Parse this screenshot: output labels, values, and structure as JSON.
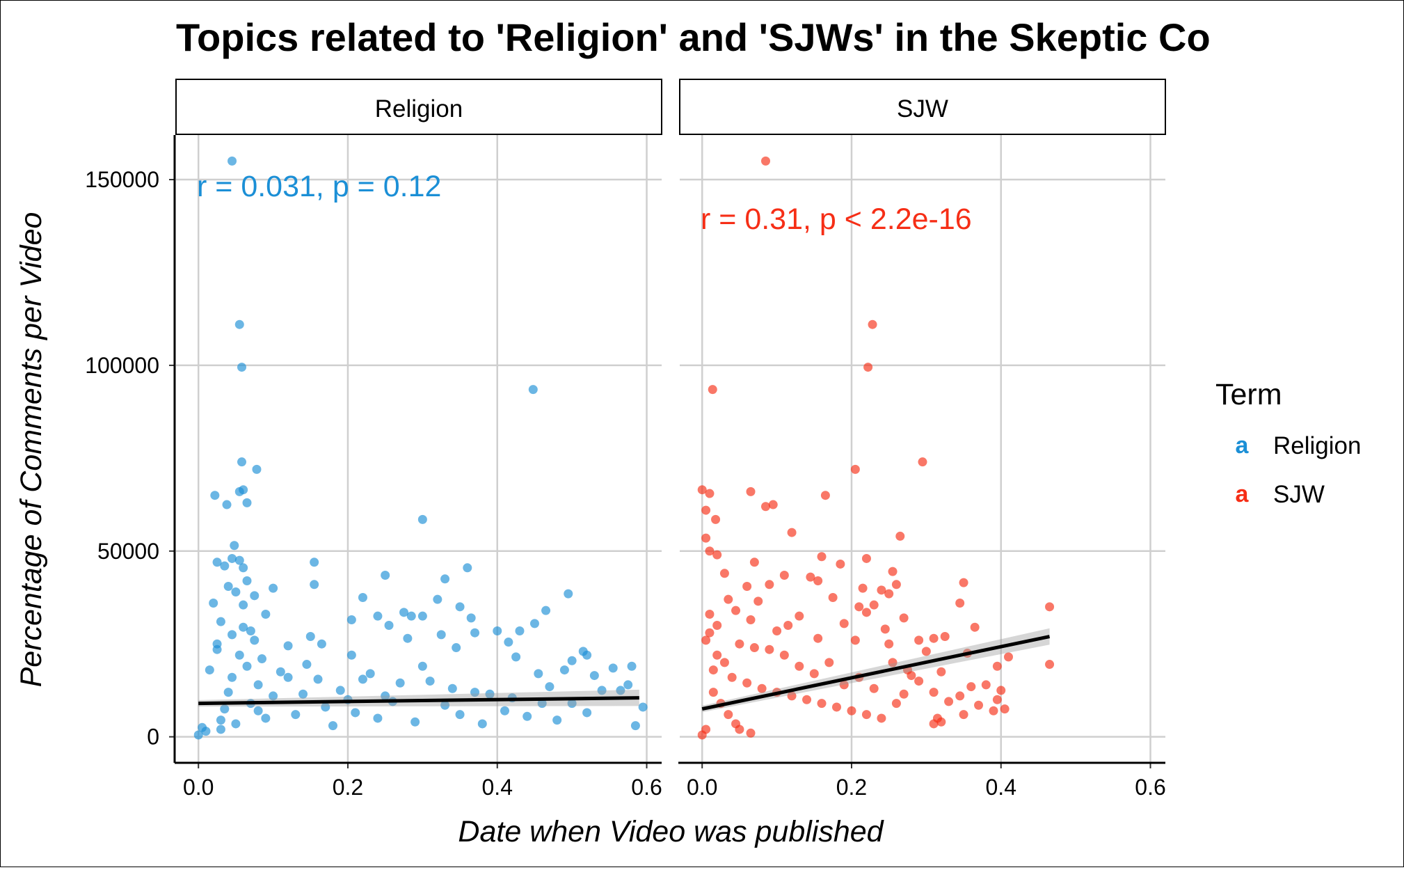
{
  "title": "Topics related to 'Religion' and 'SJWs' in the Skeptic Co",
  "chart_data": {
    "type": "scatter",
    "xlabel": "Date when Video was published",
    "ylabel": "Percentage of Comments per Video",
    "xlim": [
      -0.03,
      0.62
    ],
    "ylim": [
      -7000,
      162000
    ],
    "x_ticks": [
      0.0,
      0.2,
      0.4,
      0.6
    ],
    "x_tick_labels": [
      "0.0",
      "0.2",
      "0.4",
      "0.6"
    ],
    "y_ticks": [
      0,
      50000,
      100000,
      150000
    ],
    "y_tick_labels": [
      "0",
      "50000",
      "100000",
      "150000"
    ],
    "grid": true,
    "legend": {
      "title": "Term",
      "position": "right",
      "entries": [
        {
          "label": "Religion",
          "color": "#1b8fd6"
        },
        {
          "label": "SJW",
          "color": "#f62e16"
        }
      ],
      "key_glyph": "a"
    },
    "facets": [
      {
        "label": "Religion",
        "color": "#1b8fd6",
        "annotation": "r = 0.031, p = 0.12",
        "trend": {
          "x": [
            0.0,
            0.59
          ],
          "y": [
            9000,
            10500
          ]
        },
        "points": [
          [
            0.045,
            155000
          ],
          [
            0.055,
            111000
          ],
          [
            0.058,
            99500
          ],
          [
            0.448,
            93500
          ],
          [
            0.058,
            74000
          ],
          [
            0.078,
            72000
          ],
          [
            0.06,
            66500
          ],
          [
            0.022,
            65000
          ],
          [
            0.055,
            66000
          ],
          [
            0.065,
            63000
          ],
          [
            0.038,
            62500
          ],
          [
            0.3,
            58500
          ],
          [
            0.048,
            51500
          ],
          [
            0.045,
            48000
          ],
          [
            0.055,
            47500
          ],
          [
            0.025,
            47000
          ],
          [
            0.155,
            47000
          ],
          [
            0.035,
            46000
          ],
          [
            0.06,
            45500
          ],
          [
            0.36,
            45500
          ],
          [
            0.25,
            43500
          ],
          [
            0.33,
            42500
          ],
          [
            0.065,
            42000
          ],
          [
            0.155,
            41000
          ],
          [
            0.1,
            40000
          ],
          [
            0.04,
            40500
          ],
          [
            0.05,
            39000
          ],
          [
            0.495,
            38500
          ],
          [
            0.075,
            38000
          ],
          [
            0.22,
            37500
          ],
          [
            0.32,
            37000
          ],
          [
            0.02,
            36000
          ],
          [
            0.06,
            35500
          ],
          [
            0.35,
            35000
          ],
          [
            0.465,
            34000
          ],
          [
            0.275,
            33500
          ],
          [
            0.09,
            33000
          ],
          [
            0.24,
            32500
          ],
          [
            0.285,
            32500
          ],
          [
            0.3,
            32500
          ],
          [
            0.205,
            31500
          ],
          [
            0.365,
            32000
          ],
          [
            0.03,
            31000
          ],
          [
            0.45,
            30500
          ],
          [
            0.255,
            30000
          ],
          [
            0.4,
            28500
          ],
          [
            0.43,
            28500
          ],
          [
            0.15,
            27000
          ],
          [
            0.045,
            27500
          ],
          [
            0.28,
            26500
          ],
          [
            0.37,
            28000
          ],
          [
            0.07,
            28500
          ],
          [
            0.325,
            27500
          ],
          [
            0.415,
            25500
          ],
          [
            0.165,
            25000
          ],
          [
            0.12,
            24500
          ],
          [
            0.345,
            24000
          ],
          [
            0.515,
            23000
          ],
          [
            0.025,
            23500
          ],
          [
            0.205,
            22000
          ],
          [
            0.425,
            21500
          ],
          [
            0.52,
            22000
          ],
          [
            0.5,
            20500
          ],
          [
            0.145,
            19500
          ],
          [
            0.3,
            19000
          ],
          [
            0.455,
            17000
          ],
          [
            0.49,
            18000
          ],
          [
            0.555,
            18500
          ],
          [
            0.58,
            19000
          ],
          [
            0.53,
            16500
          ],
          [
            0.575,
            14000
          ],
          [
            0.12,
            16000
          ],
          [
            0.22,
            15500
          ],
          [
            0.54,
            12500
          ],
          [
            0.47,
            13500
          ],
          [
            0.39,
            11500
          ],
          [
            0.565,
            12500
          ],
          [
            0.595,
            8000
          ],
          [
            0.585,
            3000
          ],
          [
            0.01,
            1500
          ],
          [
            0.055,
            22000
          ],
          [
            0.065,
            19000
          ],
          [
            0.045,
            16000
          ],
          [
            0.08,
            14000
          ],
          [
            0.04,
            12000
          ],
          [
            0.1,
            11000
          ],
          [
            0.07,
            9000
          ],
          [
            0.035,
            7500
          ],
          [
            0.13,
            6000
          ],
          [
            0.09,
            5000
          ],
          [
            0.05,
            3500
          ],
          [
            0.03,
            2000
          ],
          [
            0.17,
            8000
          ],
          [
            0.21,
            6500
          ],
          [
            0.18,
            3000
          ],
          [
            0.26,
            9500
          ],
          [
            0.24,
            5000
          ],
          [
            0.29,
            4000
          ],
          [
            0.33,
            8500
          ],
          [
            0.35,
            6000
          ],
          [
            0.38,
            3500
          ],
          [
            0.41,
            7000
          ],
          [
            0.44,
            5500
          ],
          [
            0.46,
            9000
          ],
          [
            0.34,
            13000
          ],
          [
            0.27,
            14500
          ],
          [
            0.19,
            12500
          ],
          [
            0.14,
            11500
          ],
          [
            0.025,
            25000
          ],
          [
            0.06,
            29500
          ],
          [
            0.075,
            26000
          ],
          [
            0.085,
            21000
          ],
          [
            0.015,
            18000
          ],
          [
            0.11,
            17500
          ],
          [
            0.16,
            15500
          ],
          [
            0.23,
            17000
          ],
          [
            0.31,
            15000
          ],
          [
            0.25,
            11000
          ],
          [
            0.2,
            10000
          ],
          [
            0.37,
            12000
          ],
          [
            0.42,
            10500
          ],
          [
            0.5,
            9000
          ],
          [
            0.52,
            6500
          ],
          [
            0.48,
            4500
          ],
          [
            0.0,
            500
          ],
          [
            0.005,
            2500
          ],
          [
            0.03,
            4500
          ],
          [
            0.08,
            7000
          ]
        ]
      },
      {
        "label": "SJW",
        "color": "#f62e16",
        "annotation": "r = 0.31, p < 2.2e-16",
        "trend": {
          "x": [
            0.0,
            0.465
          ],
          "y": [
            7500,
            27000
          ]
        },
        "points": [
          [
            0.085,
            155000
          ],
          [
            0.228,
            111000
          ],
          [
            0.222,
            99500
          ],
          [
            0.014,
            93500
          ],
          [
            0.295,
            74000
          ],
          [
            0.205,
            72000
          ],
          [
            0.0,
            66500
          ],
          [
            0.065,
            66000
          ],
          [
            0.01,
            65500
          ],
          [
            0.165,
            65000
          ],
          [
            0.095,
            62500
          ],
          [
            0.085,
            62000
          ],
          [
            0.005,
            61000
          ],
          [
            0.018,
            58500
          ],
          [
            0.12,
            55000
          ],
          [
            0.265,
            54000
          ],
          [
            0.005,
            53500
          ],
          [
            0.01,
            50000
          ],
          [
            0.02,
            49000
          ],
          [
            0.16,
            48500
          ],
          [
            0.22,
            48000
          ],
          [
            0.07,
            47000
          ],
          [
            0.185,
            46500
          ],
          [
            0.255,
            44500
          ],
          [
            0.03,
            44000
          ],
          [
            0.11,
            43500
          ],
          [
            0.145,
            43000
          ],
          [
            0.155,
            42000
          ],
          [
            0.35,
            41500
          ],
          [
            0.26,
            41000
          ],
          [
            0.06,
            40500
          ],
          [
            0.09,
            41000
          ],
          [
            0.215,
            40000
          ],
          [
            0.24,
            39500
          ],
          [
            0.25,
            38500
          ],
          [
            0.175,
            37500
          ],
          [
            0.035,
            37000
          ],
          [
            0.075,
            36500
          ],
          [
            0.345,
            36000
          ],
          [
            0.21,
            35000
          ],
          [
            0.23,
            35500
          ],
          [
            0.465,
            35000
          ],
          [
            0.22,
            33500
          ],
          [
            0.045,
            34000
          ],
          [
            0.13,
            32500
          ],
          [
            0.27,
            32000
          ],
          [
            0.065,
            31500
          ],
          [
            0.19,
            30500
          ],
          [
            0.115,
            30000
          ],
          [
            0.365,
            29500
          ],
          [
            0.245,
            29000
          ],
          [
            0.1,
            28500
          ],
          [
            0.31,
            26500
          ],
          [
            0.29,
            26000
          ],
          [
            0.325,
            27000
          ],
          [
            0.155,
            26500
          ],
          [
            0.205,
            26000
          ],
          [
            0.25,
            25000
          ],
          [
            0.3,
            23000
          ],
          [
            0.355,
            22500
          ],
          [
            0.41,
            21500
          ],
          [
            0.255,
            20000
          ],
          [
            0.395,
            19000
          ],
          [
            0.465,
            19500
          ],
          [
            0.275,
            18000
          ],
          [
            0.32,
            17500
          ],
          [
            0.28,
            16500
          ],
          [
            0.38,
            14000
          ],
          [
            0.4,
            12500
          ],
          [
            0.36,
            13500
          ],
          [
            0.31,
            12000
          ],
          [
            0.345,
            11000
          ],
          [
            0.395,
            10000
          ],
          [
            0.33,
            9500
          ],
          [
            0.26,
            9000
          ],
          [
            0.37,
            8500
          ],
          [
            0.39,
            7000
          ],
          [
            0.405,
            7500
          ],
          [
            0.35,
            6000
          ],
          [
            0.315,
            5000
          ],
          [
            0.31,
            3500
          ],
          [
            0.32,
            4000
          ],
          [
            0.065,
            1000
          ],
          [
            0.05,
            2000
          ],
          [
            0.02,
            22000
          ],
          [
            0.03,
            20000
          ],
          [
            0.015,
            18000
          ],
          [
            0.04,
            16000
          ],
          [
            0.06,
            14500
          ],
          [
            0.08,
            13000
          ],
          [
            0.1,
            12000
          ],
          [
            0.12,
            11000
          ],
          [
            0.14,
            10000
          ],
          [
            0.16,
            9000
          ],
          [
            0.18,
            8000
          ],
          [
            0.2,
            7000
          ],
          [
            0.22,
            6000
          ],
          [
            0.24,
            5000
          ],
          [
            0.015,
            12000
          ],
          [
            0.025,
            9000
          ],
          [
            0.035,
            6000
          ],
          [
            0.045,
            3500
          ],
          [
            0.005,
            2000
          ],
          [
            0.0,
            500
          ],
          [
            0.11,
            22000
          ],
          [
            0.13,
            19000
          ],
          [
            0.15,
            17000
          ],
          [
            0.17,
            20000
          ],
          [
            0.19,
            14000
          ],
          [
            0.21,
            16000
          ],
          [
            0.23,
            13000
          ],
          [
            0.27,
            11500
          ],
          [
            0.29,
            15000
          ],
          [
            0.05,
            25000
          ],
          [
            0.07,
            24000
          ],
          [
            0.09,
            23500
          ],
          [
            0.01,
            28000
          ],
          [
            0.02,
            30000
          ],
          [
            0.01,
            33000
          ],
          [
            0.005,
            26000
          ]
        ]
      }
    ]
  }
}
